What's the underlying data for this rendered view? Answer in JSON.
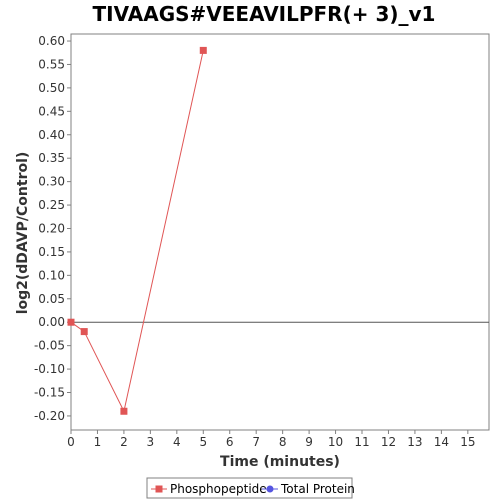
{
  "chart_data": {
    "type": "line",
    "title": "TIVAAGS#VEEAVILPFR(+ 3)_v1",
    "xlabel": "Time (minutes)",
    "ylabel": "log2(dDAVP/Control)",
    "xlim": [
      0,
      15.8
    ],
    "ylim": [
      -0.23,
      0.615
    ],
    "xticks": [
      "0",
      "1",
      "2",
      "3",
      "4",
      "5",
      "6",
      "7",
      "8",
      "9",
      "10",
      "11",
      "12",
      "13",
      "14",
      "15"
    ],
    "yticks": [
      "0.60",
      "0.55",
      "0.50",
      "0.45",
      "0.40",
      "0.35",
      "0.30",
      "0.25",
      "0.20",
      "0.15",
      "0.10",
      "0.05",
      "0.00",
      "-0.05",
      "-0.10",
      "-0.15",
      "-0.20"
    ],
    "grid": false,
    "legend_position": "bottom-center",
    "series": [
      {
        "name": "Phosphopeptide",
        "color": "#e05555",
        "marker": "square",
        "x": [
          0,
          0.5,
          2,
          5
        ],
        "y": [
          0.0,
          -0.02,
          -0.19,
          0.58
        ]
      },
      {
        "name": "Total Protein",
        "color": "#5555e0",
        "marker": "circle",
        "x": [],
        "y": []
      }
    ]
  }
}
